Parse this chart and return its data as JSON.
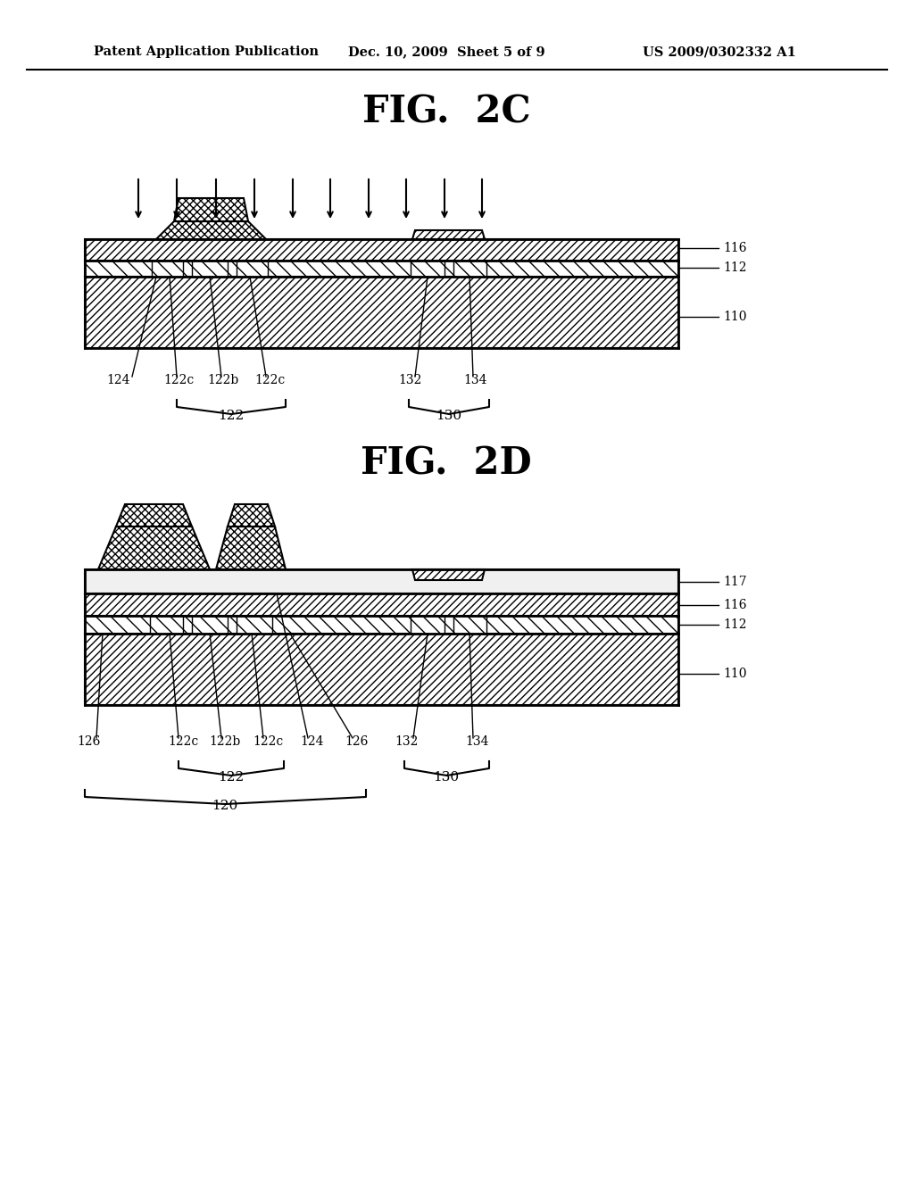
{
  "bg_color": "#ffffff",
  "header_text": "Patent Application Publication",
  "header_date": "Dec. 10, 2009  Sheet 5 of 9",
  "header_patent": "US 2009/0302332 A1",
  "fig2c_title": "FIG.  2C",
  "fig2d_title": "FIG.  2D"
}
